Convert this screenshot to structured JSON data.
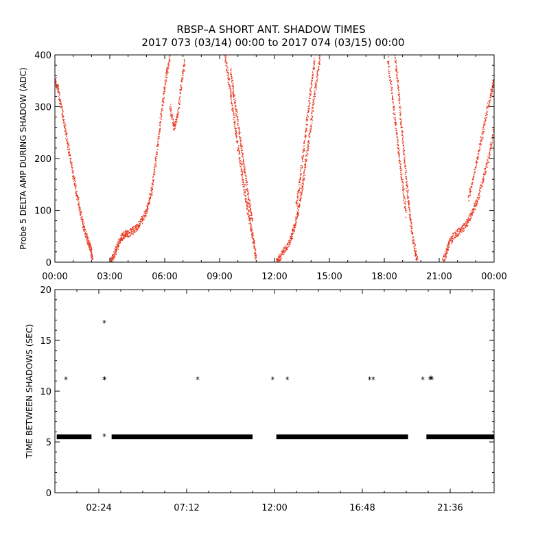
{
  "title": {
    "line1": "RBSP–A SHORT ANT. SHADOW TIMES",
    "line2": "2017 073 (03/14) 00:00 to 2017 074 (03/15) 00:00"
  },
  "colors": {
    "top_points": "#e8341c",
    "bottom_points": "#000000",
    "axes": "#000000"
  },
  "chart_data": [
    {
      "type": "scatter",
      "name": "probe5-delta-amp",
      "ylabel": "Probe 5 DELTA AMP DURING SHADOW (ADC)",
      "xlabel": "",
      "xlim_hours": [
        0,
        24
      ],
      "ylim": [
        0,
        400
      ],
      "xticks_hours": [
        0,
        3,
        6,
        9,
        12,
        15,
        18,
        21,
        24
      ],
      "xtick_labels": [
        "00:00",
        "03:00",
        "06:00",
        "09:00",
        "12:00",
        "15:00",
        "18:00",
        "21:00",
        "00:00"
      ],
      "yticks": [
        0,
        100,
        200,
        300,
        400
      ],
      "ytick_labels": [
        "0",
        "100",
        "200",
        "300",
        "400"
      ],
      "series": [
        {
          "name": "descending-1",
          "points": [
            [
              0.0,
              355
            ],
            [
              0.2,
              330
            ],
            [
              0.4,
              290
            ],
            [
              0.6,
              250
            ],
            [
              0.8,
              210
            ],
            [
              1.0,
              170
            ],
            [
              1.2,
              130
            ],
            [
              1.4,
              95
            ],
            [
              1.6,
              65
            ],
            [
              1.8,
              40
            ],
            [
              1.95,
              28
            ],
            [
              2.05,
              5
            ]
          ]
        },
        {
          "name": "ascending-1",
          "points": [
            [
              3.0,
              0
            ],
            [
              3.2,
              10
            ],
            [
              3.4,
              30
            ],
            [
              3.6,
              45
            ],
            [
              3.8,
              55
            ],
            [
              4.0,
              55
            ],
            [
              4.3,
              62
            ],
            [
              4.6,
              72
            ],
            [
              4.9,
              90
            ],
            [
              5.1,
              110
            ],
            [
              5.3,
              140
            ],
            [
              5.5,
              190
            ],
            [
              5.7,
              250
            ],
            [
              5.9,
              310
            ],
            [
              6.1,
              360
            ],
            [
              6.3,
              400
            ]
          ]
        },
        {
          "name": "ascending-1-upper",
          "points": [
            [
              6.3,
              300
            ],
            [
              6.5,
              260
            ],
            [
              6.7,
              280
            ],
            [
              6.9,
              340
            ],
            [
              7.1,
              390
            ]
          ]
        },
        {
          "name": "descending-2",
          "points": [
            [
              9.3,
              400
            ],
            [
              9.5,
              350
            ],
            [
              9.7,
              300
            ],
            [
              9.9,
              250
            ],
            [
              10.1,
              200
            ],
            [
              10.3,
              150
            ],
            [
              10.5,
              110
            ],
            [
              10.7,
              70
            ],
            [
              10.85,
              40
            ],
            [
              11.0,
              5
            ]
          ]
        },
        {
          "name": "descending-2-branch",
          "points": [
            [
              9.6,
              370
            ],
            [
              9.8,
              320
            ],
            [
              10.0,
              270
            ],
            [
              10.2,
              220
            ],
            [
              10.4,
              170
            ],
            [
              10.6,
              120
            ],
            [
              10.8,
              80
            ]
          ]
        },
        {
          "name": "ascending-2",
          "points": [
            [
              12.1,
              0
            ],
            [
              12.3,
              10
            ],
            [
              12.6,
              25
            ],
            [
              12.9,
              45
            ],
            [
              13.1,
              70
            ],
            [
              13.3,
              100
            ],
            [
              13.5,
              140
            ],
            [
              13.7,
              190
            ],
            [
              13.9,
              240
            ],
            [
              14.1,
              300
            ],
            [
              14.3,
              350
            ],
            [
              14.5,
              400
            ]
          ]
        },
        {
          "name": "ascending-2-branch",
          "points": [
            [
              13.2,
              110
            ],
            [
              13.4,
              160
            ],
            [
              13.6,
              220
            ],
            [
              13.8,
              280
            ],
            [
              14.0,
              340
            ],
            [
              14.2,
              390
            ]
          ]
        },
        {
          "name": "descending-3",
          "points": [
            [
              18.6,
              400
            ],
            [
              18.75,
              340
            ],
            [
              18.9,
              280
            ],
            [
              19.05,
              220
            ],
            [
              19.2,
              160
            ],
            [
              19.35,
              110
            ],
            [
              19.5,
              60
            ],
            [
              19.7,
              20
            ],
            [
              19.8,
              0
            ]
          ]
        },
        {
          "name": "descending-3-branch",
          "points": [
            [
              18.2,
              390
            ],
            [
              18.4,
              330
            ],
            [
              18.6,
              270
            ],
            [
              18.8,
              210
            ],
            [
              19.0,
              150
            ],
            [
              19.2,
              90
            ]
          ]
        },
        {
          "name": "ascending-3",
          "points": [
            [
              21.2,
              0
            ],
            [
              21.4,
              20
            ],
            [
              21.6,
              40
            ],
            [
              21.9,
              55
            ],
            [
              22.2,
              62
            ],
            [
              22.5,
              75
            ],
            [
              22.8,
              95
            ],
            [
              23.1,
              120
            ],
            [
              23.4,
              160
            ],
            [
              23.7,
              200
            ],
            [
              24.0,
              260
            ]
          ]
        },
        {
          "name": "ascending-3-upper",
          "points": [
            [
              22.6,
              120
            ],
            [
              22.9,
              170
            ],
            [
              23.2,
              220
            ],
            [
              23.5,
              270
            ],
            [
              23.8,
              320
            ],
            [
              24.0,
              350
            ]
          ]
        }
      ]
    },
    {
      "type": "scatter",
      "name": "time-between-shadows",
      "ylabel": "TIME BETWEEN SHADOWS (SEC)",
      "xlabel": "",
      "xlim_hours": [
        0,
        24
      ],
      "ylim": [
        0,
        20
      ],
      "xticks_hours": [
        2.4,
        7.2,
        12.0,
        16.8,
        21.6
      ],
      "xtick_labels": [
        "02:24",
        "07:12",
        "12:00",
        "16:48",
        "21:36"
      ],
      "yticks": [
        0,
        5,
        10,
        15,
        20
      ],
      "ytick_labels": [
        "0",
        "5",
        "10",
        "15",
        "20"
      ],
      "baseline_value": 5.5,
      "baseline_segments_hours": [
        [
          0.1,
          2.0
        ],
        [
          3.1,
          10.8
        ],
        [
          12.1,
          19.3
        ],
        [
          20.3,
          24.0
        ]
      ],
      "points": [
        [
          0.6,
          11.1
        ],
        [
          2.7,
          16.7
        ],
        [
          2.7,
          11.1
        ],
        [
          2.72,
          11.1
        ],
        [
          2.7,
          5.5
        ],
        [
          7.8,
          11.1
        ],
        [
          11.9,
          11.1
        ],
        [
          12.7,
          11.1
        ],
        [
          17.2,
          11.1
        ],
        [
          17.4,
          11.1
        ],
        [
          20.1,
          11.1
        ],
        [
          20.5,
          11.1
        ],
        [
          20.6,
          11.1
        ],
        [
          20.55,
          11.2
        ]
      ]
    }
  ]
}
